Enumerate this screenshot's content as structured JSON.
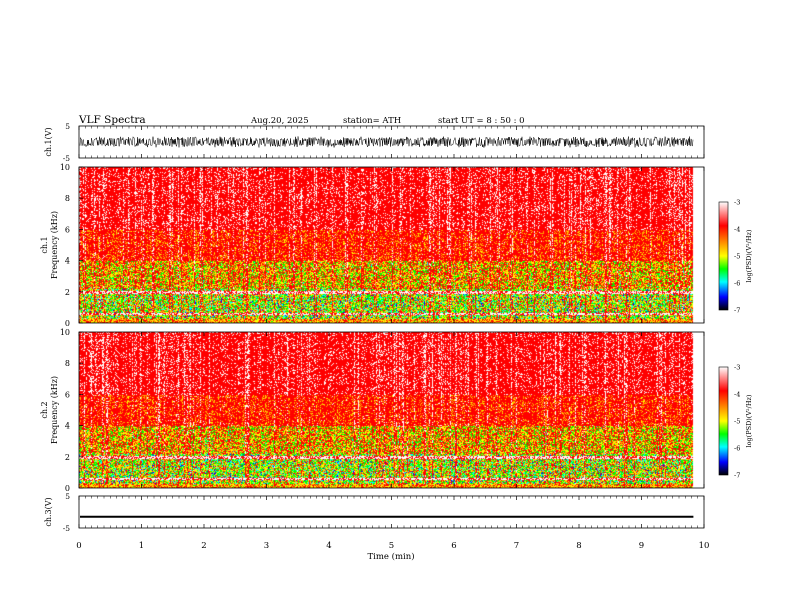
{
  "header": {
    "title": "VLF  Spectra",
    "date": "Aug.20, 2025",
    "station": "station= ATH",
    "start_ut": "start  UT  =   8  : 50 : 0"
  },
  "chart_data": [
    {
      "type": "line",
      "name": "ch1-waveform",
      "ylabel": "ch.1(V)",
      "ylim": [
        -5,
        5
      ],
      "y_ticks": [
        "5",
        "-5"
      ],
      "xlim": [
        0,
        10
      ],
      "data_end_min": 9.83,
      "amplitude_band_V": [
        -1.8,
        1.8
      ],
      "description": "dense noisy waveform"
    },
    {
      "type": "heatmap",
      "name": "ch1-spectrogram",
      "ylabel_top": "ch.1",
      "ylabel": "Frequency  (kHz)",
      "xlim": [
        0,
        9.83
      ],
      "ylim": [
        0,
        10
      ],
      "y_ticks": [
        "0",
        "2",
        "4",
        "6",
        "8",
        "10"
      ],
      "colorbar": {
        "label": "log(PSD)(V²/Hz)",
        "range": [
          -7,
          -3
        ],
        "ticks": [
          "-3",
          "-4",
          "-5",
          "-6",
          "-7"
        ]
      }
    },
    {
      "type": "heatmap",
      "name": "ch2-spectrogram",
      "ylabel_top": "ch.2",
      "ylabel": "Frequency  (kHz)",
      "xlim": [
        0,
        9.83
      ],
      "ylim": [
        0,
        10
      ],
      "y_ticks": [
        "0",
        "2",
        "4",
        "6",
        "8",
        "10"
      ],
      "colorbar": {
        "label": "log(PSD)(V²/Hz)",
        "range": [
          -7,
          -3
        ],
        "ticks": [
          "-3",
          "-4",
          "-5",
          "-6",
          "-7"
        ]
      }
    },
    {
      "type": "line",
      "name": "ch3-waveform",
      "ylabel": "ch.3(V)",
      "ylim": [
        -5,
        5
      ],
      "y_ticks": [
        "5",
        "-5"
      ],
      "xlim": [
        0,
        10
      ],
      "data_end_min": 9.83,
      "constant_value_V": -1.5
    }
  ],
  "x_axis": {
    "label": "Time  (min)",
    "ticks": [
      "0",
      "1",
      "2",
      "3",
      "4",
      "5",
      "6",
      "7",
      "8",
      "9",
      "10"
    ]
  },
  "colors": {
    "high": "#ff0000",
    "white": "#ffffff",
    "mid": "#ffff00",
    "low": "#00ff00",
    "cyan": "#00ffff",
    "blue": "#0000ff",
    "black": "#000000"
  }
}
